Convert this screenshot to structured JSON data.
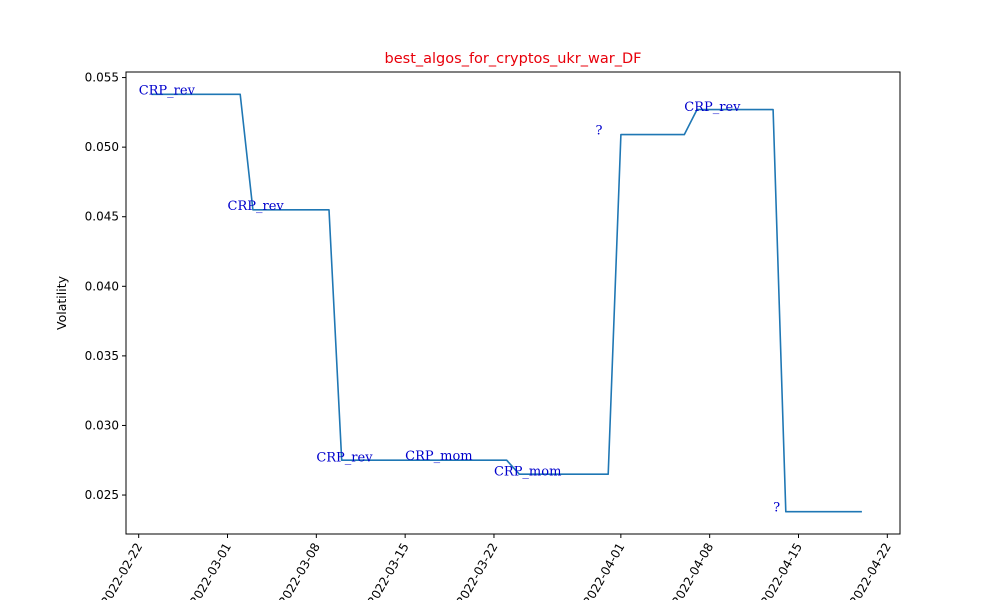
{
  "colors": {
    "title": "#e8000b",
    "line": "#1f77b4",
    "annotation": "#0000cc",
    "axis": "#000000"
  },
  "chart_data": {
    "type": "line",
    "title": "best_algos_for_cryptos_ukr_war_DF",
    "xlabel": "",
    "ylabel": "Volatility",
    "ylim": [
      0.0222,
      0.0554
    ],
    "xlim": [
      "2022-02-21",
      "2022-04-23"
    ],
    "grid": false,
    "yticks": [
      0.025,
      0.03,
      0.035,
      0.04,
      0.045,
      0.05,
      0.055
    ],
    "yticklabels": [
      "0.025",
      "0.030",
      "0.035",
      "0.040",
      "0.045",
      "0.050",
      "0.055"
    ],
    "xticks": [
      "2022-02-22",
      "2022-03-01",
      "2022-03-08",
      "2022-03-15",
      "2022-03-22",
      "2022-04-01",
      "2022-04-08",
      "2022-04-15",
      "2022-04-22"
    ],
    "xticklabels": [
      "2022-02-22",
      "2022-03-01",
      "2022-03-08",
      "2022-03-15",
      "2022-03-22",
      "2022-04-01",
      "2022-04-08",
      "2022-04-15",
      "2022-04-22"
    ],
    "series": [
      {
        "x": [
          "2022-02-23",
          "2022-03-02",
          "2022-03-03",
          "2022-03-09",
          "2022-03-10",
          "2022-03-16",
          "2022-03-23",
          "2022-03-24",
          "2022-03-31",
          "2022-04-01",
          "2022-04-06",
          "2022-04-07",
          "2022-04-13",
          "2022-04-14",
          "2022-04-20"
        ],
        "y": [
          0.0538,
          0.0538,
          0.0455,
          0.0455,
          0.0275,
          0.0275,
          0.0275,
          0.0265,
          0.0265,
          0.0509,
          0.0509,
          0.0527,
          0.0527,
          0.0238,
          0.0238
        ]
      }
    ],
    "annotations": [
      {
        "text": "CRP_rev",
        "x": "2022-02-22",
        "y": 0.0538
      },
      {
        "text": "CRP_rev",
        "x": "2022-03-01",
        "y": 0.0455
      },
      {
        "text": "CRP_rev",
        "x": "2022-03-08",
        "y": 0.0274
      },
      {
        "text": "CRP_mom",
        "x": "2022-03-15",
        "y": 0.0275
      },
      {
        "text": "CRP_mom",
        "x": "2022-03-22",
        "y": 0.0264
      },
      {
        "text": "?",
        "x": "2022-03-30",
        "y": 0.0509
      },
      {
        "text": "CRP_rev",
        "x": "2022-04-06",
        "y": 0.0526
      },
      {
        "text": "?",
        "x": "2022-04-13",
        "y": 0.0238
      }
    ]
  }
}
